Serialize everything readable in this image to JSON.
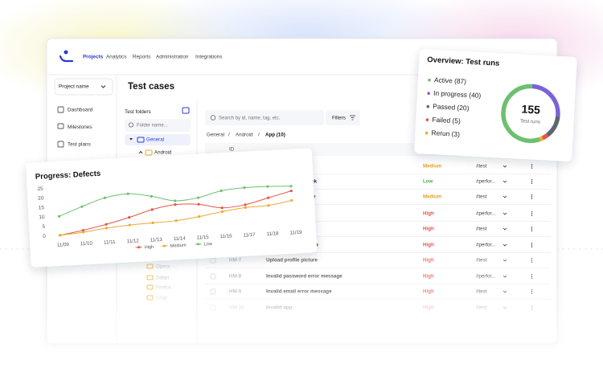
{
  "nav": {
    "items": [
      "Projects",
      "Analytics",
      "Reports",
      "Administration",
      "Integrations"
    ]
  },
  "sidebar": {
    "project": "Project name",
    "menu": [
      "Dashboard",
      "Milestones",
      "Test plans"
    ]
  },
  "folders": {
    "title": "Test folders",
    "search": "Folder name...",
    "items": [
      "General",
      "Android",
      "Opera",
      "Safari",
      "Firefox",
      "Edge"
    ]
  },
  "content": {
    "title": "Test cases",
    "search": "Search by id, name, tag, etc.",
    "filters": "Filters",
    "breadcrumb": [
      "General",
      "Android",
      "App (10)"
    ],
    "breadcrumb_separator": "/",
    "header_id": "ID",
    "rows": [
      {
        "priority": "Medium",
        "tag": "#test"
      },
      {
        "name": "a Facebook",
        "priority": "Low",
        "tag": "#perfor..."
      },
      {
        "name": "e Google",
        "priority": "Medium",
        "tag": "#test"
      },
      {
        "priority": "High",
        "tag": "#perfor..."
      },
      {
        "priority": "High",
        "tag": "#test"
      },
      {
        "name": "p",
        "priority": "High",
        "tag": "#perfor..."
      },
      {
        "id": "HM-7",
        "name": "Upload profile picture",
        "priority": "High",
        "tag": "#test"
      },
      {
        "id": "HM-8",
        "name": "Invalid password error message",
        "priority": "High",
        "tag": "#perfor..."
      },
      {
        "id": "HM-9",
        "name": "Invalid email error message",
        "priority": "High",
        "tag": "#test"
      },
      {
        "id": "HM-10",
        "name": "Invalid app",
        "priority": "High",
        "tag": "#test"
      }
    ]
  },
  "chart_data": [
    {
      "type": "line",
      "title": "Progress: Defects",
      "categories": [
        "11/09",
        "11/10",
        "11/11",
        "11/12",
        "11/13",
        "11/14",
        "11/15",
        "11/16",
        "11/17",
        "11/18",
        "11/19"
      ],
      "series": [
        {
          "name": "High",
          "color": "#e5534b",
          "values": [
            0,
            2,
            4.5,
            7.5,
            11,
            13,
            12.5,
            10,
            11,
            14,
            17
          ]
        },
        {
          "name": "Medium",
          "color": "#f0a830",
          "values": [
            0,
            1,
            2.5,
            3.5,
            4,
            4.5,
            6,
            8,
            9.5,
            10,
            12
          ]
        },
        {
          "name": "Low",
          "color": "#6cc070",
          "values": [
            10,
            14.5,
            18.5,
            20,
            18,
            15,
            16,
            19,
            20,
            20,
            19.5
          ]
        }
      ],
      "ylim": [
        0,
        25
      ],
      "yticks": [
        0,
        5,
        10,
        15,
        20,
        25
      ],
      "grid": false,
      "legend": "bottom"
    },
    {
      "type": "donut",
      "title": "Overview: Test runs",
      "categories": [
        "Active (87)",
        "In progress (40)",
        "Passed (20)",
        "Failed (5)",
        "Rerun (3)"
      ],
      "values": [
        87,
        40,
        20,
        5,
        3
      ],
      "colors": [
        "#6cc070",
        "#7b61d9",
        "#5f6570",
        "#e5534b",
        "#f0a830"
      ],
      "center_label": "155",
      "center_sublabel": "Test runs",
      "legend": "left"
    }
  ]
}
